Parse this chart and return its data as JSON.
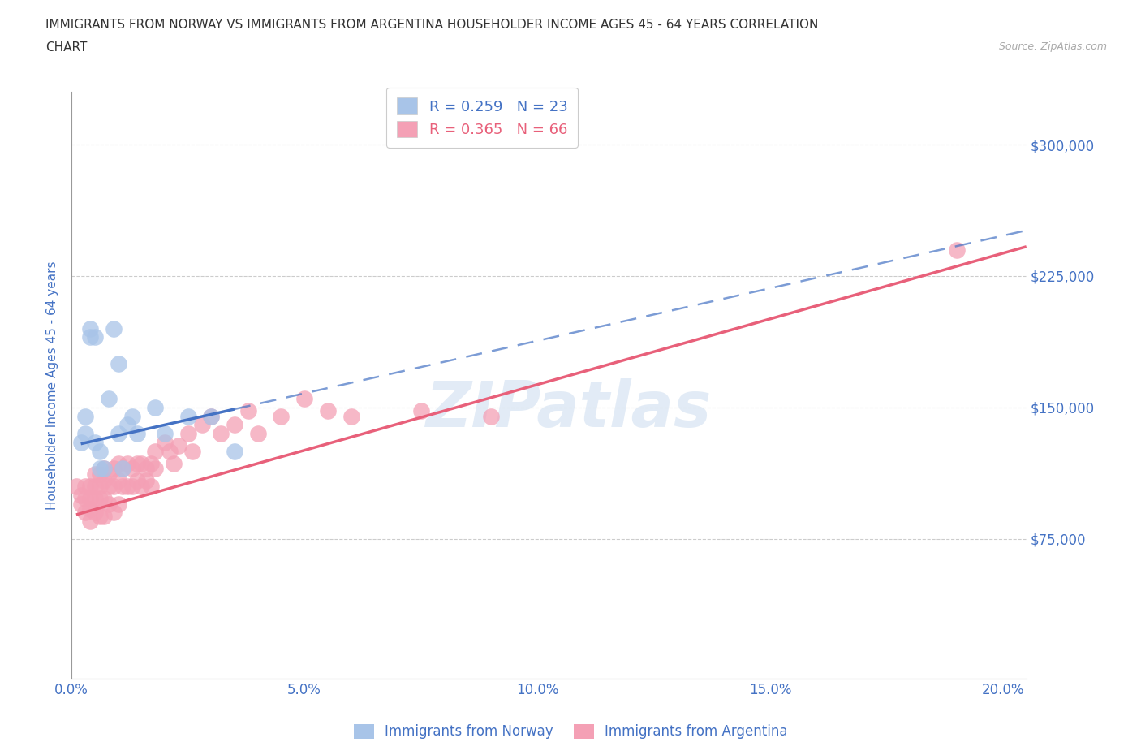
{
  "title_line1": "IMMIGRANTS FROM NORWAY VS IMMIGRANTS FROM ARGENTINA HOUSEHOLDER INCOME AGES 45 - 64 YEARS CORRELATION",
  "title_line2": "CHART",
  "source": "Source: ZipAtlas.com",
  "ylabel": "Householder Income Ages 45 - 64 years",
  "xlim": [
    0.0,
    0.205
  ],
  "ylim": [
    -5000,
    330000
  ],
  "yticks": [
    0,
    75000,
    150000,
    225000,
    300000
  ],
  "ytick_labels": [
    "",
    "$75,000",
    "$150,000",
    "$225,000",
    "$300,000"
  ],
  "xticks": [
    0.0,
    0.05,
    0.1,
    0.15,
    0.2
  ],
  "xtick_labels": [
    "0.0%",
    "5.0%",
    "10.0%",
    "15.0%",
    "20.0%"
  ],
  "norway_color": "#a8c4e8",
  "argentina_color": "#f4a0b5",
  "norway_line_color": "#4472c4",
  "argentina_line_color": "#e8607a",
  "norway_R": 0.259,
  "norway_N": 23,
  "argentina_R": 0.365,
  "argentina_N": 66,
  "axis_label_color": "#4472c4",
  "watermark": "ZIPatlas",
  "norway_x": [
    0.002,
    0.003,
    0.003,
    0.004,
    0.004,
    0.005,
    0.005,
    0.006,
    0.006,
    0.007,
    0.008,
    0.009,
    0.01,
    0.01,
    0.011,
    0.012,
    0.013,
    0.014,
    0.018,
    0.02,
    0.025,
    0.03,
    0.035
  ],
  "norway_y": [
    130000,
    135000,
    145000,
    190000,
    195000,
    190000,
    130000,
    125000,
    115000,
    115000,
    155000,
    195000,
    175000,
    135000,
    115000,
    140000,
    145000,
    135000,
    150000,
    135000,
    145000,
    145000,
    125000
  ],
  "argentina_x": [
    0.001,
    0.002,
    0.002,
    0.003,
    0.003,
    0.003,
    0.004,
    0.004,
    0.004,
    0.004,
    0.005,
    0.005,
    0.005,
    0.005,
    0.006,
    0.006,
    0.006,
    0.006,
    0.007,
    0.007,
    0.007,
    0.007,
    0.008,
    0.008,
    0.008,
    0.009,
    0.009,
    0.009,
    0.01,
    0.01,
    0.01,
    0.011,
    0.011,
    0.012,
    0.012,
    0.013,
    0.013,
    0.014,
    0.014,
    0.015,
    0.015,
    0.016,
    0.016,
    0.017,
    0.017,
    0.018,
    0.018,
    0.02,
    0.021,
    0.022,
    0.023,
    0.025,
    0.026,
    0.028,
    0.03,
    0.032,
    0.035,
    0.038,
    0.04,
    0.045,
    0.05,
    0.055,
    0.06,
    0.075,
    0.09,
    0.19
  ],
  "argentina_y": [
    105000,
    100000,
    95000,
    105000,
    98000,
    90000,
    105000,
    98000,
    92000,
    85000,
    112000,
    105000,
    98000,
    90000,
    112000,
    105000,
    98000,
    88000,
    115000,
    108000,
    98000,
    88000,
    112000,
    105000,
    95000,
    115000,
    105000,
    90000,
    118000,
    108000,
    95000,
    115000,
    105000,
    118000,
    105000,
    115000,
    105000,
    118000,
    108000,
    118000,
    105000,
    115000,
    108000,
    118000,
    105000,
    125000,
    115000,
    130000,
    125000,
    118000,
    128000,
    135000,
    125000,
    140000,
    145000,
    135000,
    140000,
    148000,
    135000,
    145000,
    155000,
    148000,
    145000,
    148000,
    145000,
    240000
  ],
  "norway_line_x_start": 0.002,
  "norway_line_x_solid_end": 0.035,
  "norway_line_x_dashed_end": 0.205,
  "argentina_line_x_start": 0.001,
  "argentina_line_x_end": 0.205,
  "norway_intercept": 128000,
  "norway_slope": 600000,
  "argentina_intercept": 88000,
  "argentina_slope": 750000
}
